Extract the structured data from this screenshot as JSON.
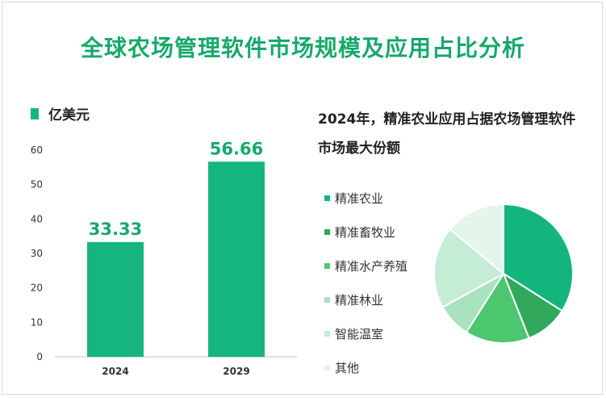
{
  "title": "全球农场管理软件市场规模及应用占比分析",
  "colors": {
    "accent": "#17a86b",
    "bar": "#16b57f"
  },
  "chart_data": [
    {
      "type": "bar",
      "ylabel": "亿美元",
      "categories": [
        "2024",
        "2029"
      ],
      "values": [
        33.33,
        56.66
      ],
      "value_labels": [
        "33.33",
        "56.66"
      ],
      "ylim": [
        0,
        60
      ],
      "yticks": [
        0,
        10,
        20,
        30,
        40,
        50,
        60
      ],
      "grid": false
    },
    {
      "type": "pie",
      "title": "2024年，精准农业应用占据农场管理软件市场最大份额",
      "legend_position": "left",
      "labels": [
        "精准农业",
        "精准畜牧业",
        "精准水产养殖",
        "精准林业",
        "智能温室",
        "其他"
      ],
      "values": [
        34,
        10,
        15,
        8,
        19,
        14
      ],
      "colors": [
        "#14b57d",
        "#31a85b",
        "#4dc76f",
        "#a8e2bf",
        "#c5ecd5",
        "#e4f5ec"
      ]
    }
  ]
}
